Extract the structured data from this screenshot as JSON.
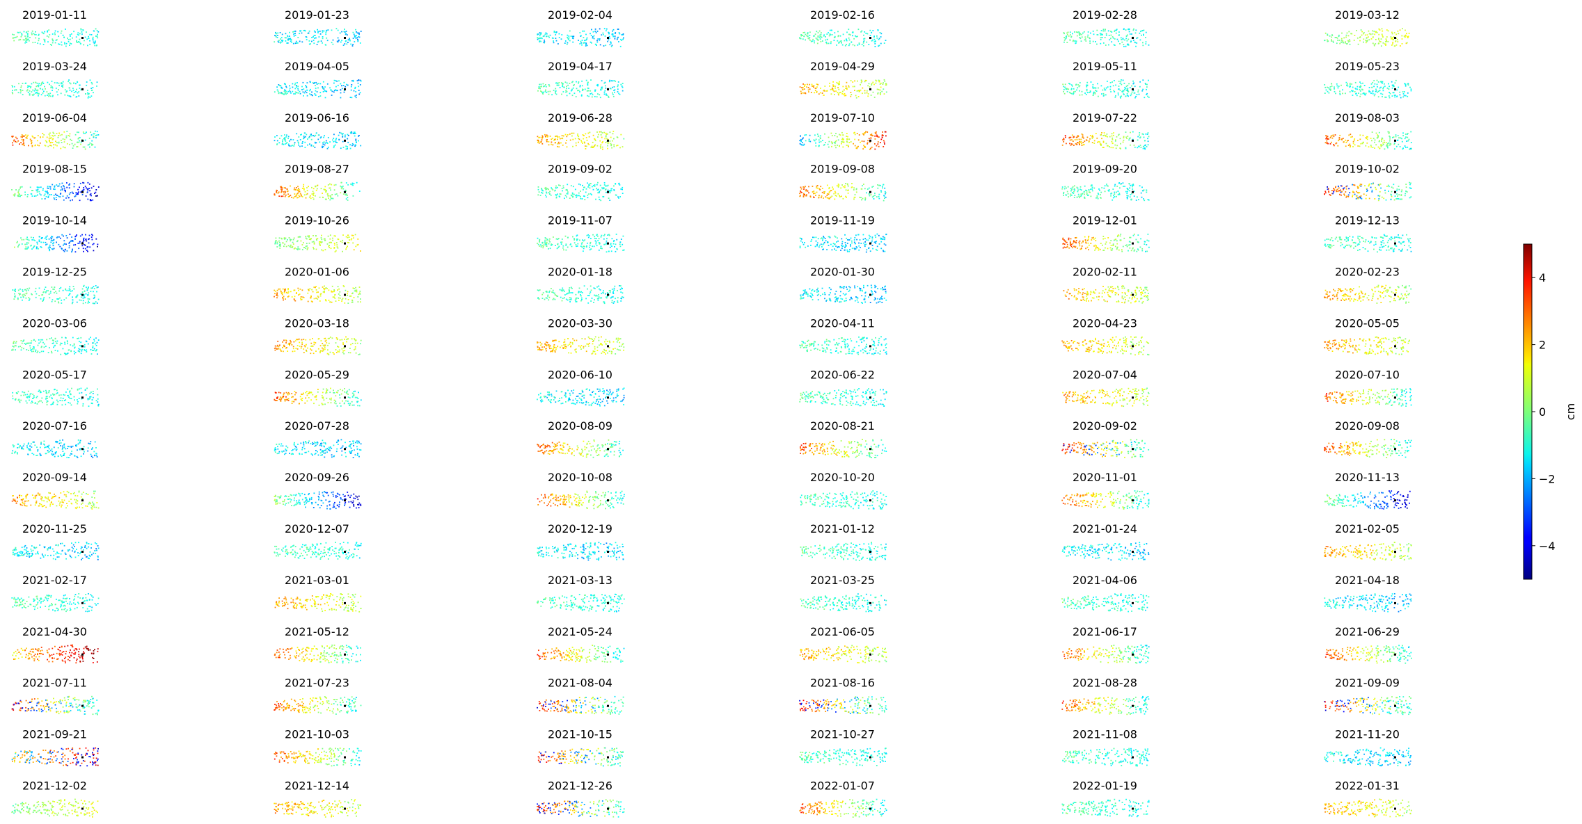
{
  "figure": {
    "colorbar": {
      "label": "cm",
      "ticks": [
        "4",
        "2",
        "0",
        "−2",
        "−4"
      ],
      "tick_values": [
        4,
        2,
        0,
        -2,
        -4
      ],
      "vmin": -5,
      "vmax": 5,
      "colormap": "jet"
    }
  },
  "chart_data": {
    "type": "scatter",
    "layout": "small-multiples grid, 6 columns x 16 rows, axes hidden",
    "colormap": "jet",
    "color_range": [
      -5,
      5
    ],
    "unit": "cm",
    "reference_marker_color": "#000000",
    "panels": [
      {
        "title": "2019-01-11",
        "pattern": "mostly_green_cyan"
      },
      {
        "title": "2019-01-23",
        "pattern": "cyan_blue_mix"
      },
      {
        "title": "2019-02-04",
        "pattern": "cyan_blue_mix"
      },
      {
        "title": "2019-02-16",
        "pattern": "mostly_green_cyan"
      },
      {
        "title": "2019-02-28",
        "pattern": "mostly_green_cyan"
      },
      {
        "title": "2019-03-12",
        "pattern": "green_yellow_east"
      },
      {
        "title": "2019-03-24",
        "pattern": "mostly_green_cyan"
      },
      {
        "title": "2019-04-05",
        "pattern": "cyan_blue_mix"
      },
      {
        "title": "2019-04-17",
        "pattern": "mostly_green_cyan"
      },
      {
        "title": "2019-04-29",
        "pattern": "warm_orange_yellow"
      },
      {
        "title": "2019-05-11",
        "pattern": "mostly_green_cyan"
      },
      {
        "title": "2019-05-23",
        "pattern": "mostly_green_cyan"
      },
      {
        "title": "2019-06-04",
        "pattern": "red_west_cyan_east"
      },
      {
        "title": "2019-06-16",
        "pattern": "cyan_blue_mix"
      },
      {
        "title": "2019-06-28",
        "pattern": "warm_orange_yellow"
      },
      {
        "title": "2019-07-10",
        "pattern": "blue_west_red_east"
      },
      {
        "title": "2019-07-22",
        "pattern": "red_west_cyan_east"
      },
      {
        "title": "2019-08-03",
        "pattern": "red_west_cyan_east"
      },
      {
        "title": "2019-08-15",
        "pattern": "blue_east_strong"
      },
      {
        "title": "2019-08-27",
        "pattern": "red_west_cyan_east"
      },
      {
        "title": "2019-09-02",
        "pattern": "mostly_green_cyan"
      },
      {
        "title": "2019-09-08",
        "pattern": "red_west_cyan_east"
      },
      {
        "title": "2019-09-20",
        "pattern": "mostly_green_cyan"
      },
      {
        "title": "2019-10-02",
        "pattern": "purple_red_west"
      },
      {
        "title": "2019-10-14",
        "pattern": "blue_east_strong"
      },
      {
        "title": "2019-10-26",
        "pattern": "green_yellow_east"
      },
      {
        "title": "2019-11-07",
        "pattern": "mostly_green_cyan"
      },
      {
        "title": "2019-11-19",
        "pattern": "cyan_blue_mix"
      },
      {
        "title": "2019-12-01",
        "pattern": "red_west_cyan_east"
      },
      {
        "title": "2019-12-13",
        "pattern": "mostly_green_cyan"
      },
      {
        "title": "2019-12-25",
        "pattern": "mostly_green_cyan"
      },
      {
        "title": "2020-01-06",
        "pattern": "warm_orange_yellow"
      },
      {
        "title": "2020-01-18",
        "pattern": "mostly_green_cyan"
      },
      {
        "title": "2020-01-30",
        "pattern": "cyan_blue_mix"
      },
      {
        "title": "2020-02-11",
        "pattern": "warm_orange_yellow"
      },
      {
        "title": "2020-02-23",
        "pattern": "warm_orange_yellow"
      },
      {
        "title": "2020-03-06",
        "pattern": "mostly_green_cyan"
      },
      {
        "title": "2020-03-18",
        "pattern": "warm_orange_yellow"
      },
      {
        "title": "2020-03-30",
        "pattern": "warm_orange_yellow"
      },
      {
        "title": "2020-04-11",
        "pattern": "mostly_green_cyan"
      },
      {
        "title": "2020-04-23",
        "pattern": "warm_orange_yellow"
      },
      {
        "title": "2020-05-05",
        "pattern": "warm_orange_yellow"
      },
      {
        "title": "2020-05-17",
        "pattern": "mostly_green_cyan"
      },
      {
        "title": "2020-05-29",
        "pattern": "red_west_cyan_east"
      },
      {
        "title": "2020-06-10",
        "pattern": "cyan_blue_mix"
      },
      {
        "title": "2020-06-22",
        "pattern": "mostly_green_cyan"
      },
      {
        "title": "2020-07-04",
        "pattern": "warm_orange_yellow"
      },
      {
        "title": "2020-07-10",
        "pattern": "red_west_cyan_east"
      },
      {
        "title": "2020-07-16",
        "pattern": "cyan_blue_mix"
      },
      {
        "title": "2020-07-28",
        "pattern": "cyan_blue_mix"
      },
      {
        "title": "2020-08-09",
        "pattern": "red_west_cyan_east"
      },
      {
        "title": "2020-08-21",
        "pattern": "red_west_cyan_east"
      },
      {
        "title": "2020-09-02",
        "pattern": "purple_red_west"
      },
      {
        "title": "2020-09-08",
        "pattern": "red_west_cyan_east"
      },
      {
        "title": "2020-09-14",
        "pattern": "warm_orange_yellow"
      },
      {
        "title": "2020-09-26",
        "pattern": "blue_east_strong"
      },
      {
        "title": "2020-10-08",
        "pattern": "red_west_cyan_east"
      },
      {
        "title": "2020-10-20",
        "pattern": "mostly_green_cyan"
      },
      {
        "title": "2020-11-01",
        "pattern": "red_west_cyan_east"
      },
      {
        "title": "2020-11-13",
        "pattern": "blue_east_strong"
      },
      {
        "title": "2020-11-25",
        "pattern": "cyan_blue_mix"
      },
      {
        "title": "2020-12-07",
        "pattern": "mostly_green_cyan"
      },
      {
        "title": "2020-12-19",
        "pattern": "cyan_blue_mix"
      },
      {
        "title": "2021-01-12",
        "pattern": "mostly_green_cyan"
      },
      {
        "title": "2021-01-24",
        "pattern": "cyan_blue_mix"
      },
      {
        "title": "2021-02-05",
        "pattern": "warm_orange_yellow"
      },
      {
        "title": "2021-02-17",
        "pattern": "mostly_green_cyan"
      },
      {
        "title": "2021-03-01",
        "pattern": "warm_orange_yellow"
      },
      {
        "title": "2021-03-13",
        "pattern": "mostly_green_cyan"
      },
      {
        "title": "2021-03-25",
        "pattern": "mostly_green_cyan"
      },
      {
        "title": "2021-04-06",
        "pattern": "mostly_green_cyan"
      },
      {
        "title": "2021-04-18",
        "pattern": "cyan_blue_mix"
      },
      {
        "title": "2021-04-30",
        "pattern": "red_east_strong"
      },
      {
        "title": "2021-05-12",
        "pattern": "red_west_cyan_east"
      },
      {
        "title": "2021-05-24",
        "pattern": "red_west_cyan_east"
      },
      {
        "title": "2021-06-05",
        "pattern": "warm_orange_yellow"
      },
      {
        "title": "2021-06-17",
        "pattern": "red_west_cyan_east"
      },
      {
        "title": "2021-06-29",
        "pattern": "red_west_cyan_east"
      },
      {
        "title": "2021-07-11",
        "pattern": "purple_red_west"
      },
      {
        "title": "2021-07-23",
        "pattern": "red_west_cyan_east"
      },
      {
        "title": "2021-08-04",
        "pattern": "purple_red_west"
      },
      {
        "title": "2021-08-16",
        "pattern": "purple_red_west"
      },
      {
        "title": "2021-08-28",
        "pattern": "red_west_cyan_east"
      },
      {
        "title": "2021-09-09",
        "pattern": "purple_red_west"
      },
      {
        "title": "2021-09-21",
        "pattern": "mixed_blue_red_strong"
      },
      {
        "title": "2021-10-03",
        "pattern": "red_west_cyan_east"
      },
      {
        "title": "2021-10-15",
        "pattern": "purple_red_west"
      },
      {
        "title": "2021-10-27",
        "pattern": "mostly_green_cyan"
      },
      {
        "title": "2021-11-08",
        "pattern": "mostly_green_cyan"
      },
      {
        "title": "2021-11-20",
        "pattern": "cyan_blue_mix"
      },
      {
        "title": "2021-12-02",
        "pattern": "green_yellow_east"
      },
      {
        "title": "2021-12-14",
        "pattern": "warm_orange_yellow"
      },
      {
        "title": "2021-12-26",
        "pattern": "purple_red_west"
      },
      {
        "title": "2022-01-07",
        "pattern": "red_west_cyan_east"
      },
      {
        "title": "2022-01-19",
        "pattern": "mostly_green_cyan"
      },
      {
        "title": "2022-01-31",
        "pattern": "warm_orange_yellow"
      }
    ]
  }
}
